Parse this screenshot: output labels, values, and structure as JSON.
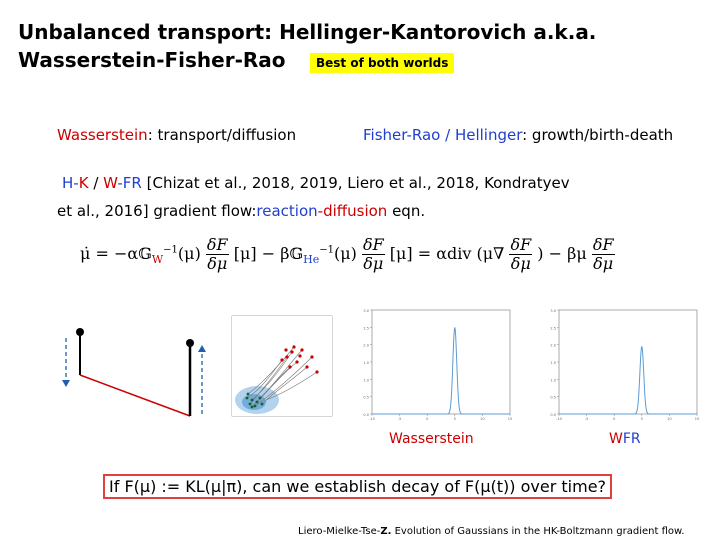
{
  "title_line1": "Unbalanced transport: Hellinger-Kantorovich a.k.a.",
  "title_line2": "Wasserstein-Fisher-Rao",
  "badge": "Best of both worlds",
  "row1": {
    "wasserstein": "Wasserstein",
    "wasserstein_rest": ": transport/diffusion",
    "fisher_rao": "Fisher-Rao",
    "slash": " / ",
    "hellinger": "Hellinger",
    "hellinger_rest": ": growth/birth-death"
  },
  "row2": {
    "h": "H",
    "dash1": "-",
    "k": "K",
    "slash": " / ",
    "w": "W",
    "dash2": "-",
    "fr": "FR",
    "rest": " [Chizat et al., 2018, 2019, Liero et al., 2018, Kondratyev"
  },
  "row3": {
    "start": "et al., 2016] gradient flow:",
    "reaction": "reaction",
    "dash": "-",
    "diffusion": "diffusion",
    "end": " eqn."
  },
  "equation": {
    "lhs": "μ̇ = −α𝔾",
    "sub_w": "W",
    "sup_inv": "−1",
    "mu_paren": "(μ)",
    "num": "δF",
    "den": "δμ",
    "bracket": "[μ] − β𝔾",
    "sub_he": "He",
    "eq_mid": "[μ] = αdiv (μ∇",
    "close": ") − βμ"
  },
  "captions": {
    "wasserstein": "Wasserstein",
    "wfr_w": "W",
    "wfr_fr": "FR"
  },
  "question": "If F(μ) := KL(μ|π), can we establish decay of F(μ(t)) over time?",
  "citation": {
    "authors": "Liero-Mielke-Tse-",
    "bold": "Z.",
    "rest": " Evolution of Gaussians in the HK-Boltzmann gradient flow."
  },
  "colors": {
    "red": "#cc0000",
    "blue": "#1f3fcf",
    "badge": "#ffff00",
    "box": "#e04040",
    "curve": "#5b9bd5"
  },
  "chart_data": [
    {
      "type": "line",
      "title": "",
      "series": [
        {
          "values": [
            0,
            0,
            0,
            2.5,
            0,
            0
          ]
        }
      ],
      "x": [
        -10,
        -5,
        0,
        5,
        10,
        15
      ],
      "ylim": [
        0,
        3.0
      ]
    },
    {
      "type": "line",
      "title": "",
      "series": [
        {
          "values": [
            0,
            0,
            0,
            1.95,
            0,
            0
          ]
        }
      ],
      "x": [
        -10,
        -5,
        0,
        5,
        10,
        15
      ],
      "ylim": [
        0,
        3.0
      ]
    }
  ]
}
